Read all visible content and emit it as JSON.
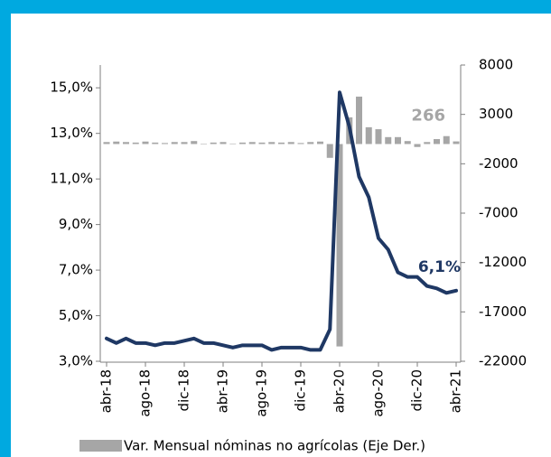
{
  "chart_data": {
    "type": "bar_line",
    "categories": [
      "abr-18",
      null,
      null,
      null,
      "ago-18",
      null,
      null,
      null,
      "dic-18",
      null,
      null,
      null,
      "abr-19",
      null,
      null,
      null,
      "ago-19",
      null,
      null,
      null,
      "dic-19",
      null,
      null,
      null,
      "abr-20",
      null,
      null,
      null,
      "ago-20",
      null,
      null,
      null,
      "dic-20",
      null,
      null,
      null,
      "abr-21"
    ],
    "series": [
      {
        "name": "Var. Mensual nóminas no agrícolas (Eje Der.)",
        "type": "bar",
        "axis": "y2",
        "color": "#a6a6a6",
        "values": [
          200,
          250,
          200,
          150,
          250,
          150,
          100,
          200,
          200,
          300,
          0,
          150,
          200,
          50,
          150,
          200,
          150,
          200,
          150,
          200,
          100,
          200,
          250,
          -1400,
          -20500,
          2700,
          4800,
          1700,
          1500,
          700,
          700,
          300,
          -300,
          200,
          500,
          800,
          266
        ],
        "value_labels": [
          null,
          null,
          null,
          null,
          null,
          null,
          null,
          null,
          null,
          null,
          null,
          null,
          null,
          null,
          null,
          null,
          null,
          null,
          null,
          null,
          null,
          null,
          null,
          null,
          null,
          null,
          null,
          null,
          null,
          null,
          null,
          null,
          null,
          null,
          null,
          null,
          "266"
        ]
      },
      {
        "type": "line",
        "axis": "y",
        "color": "#1f3864",
        "values": [
          4.0,
          3.8,
          4.0,
          3.8,
          3.8,
          3.7,
          3.8,
          3.8,
          3.9,
          4.0,
          3.8,
          3.8,
          3.7,
          3.6,
          3.7,
          3.7,
          3.7,
          3.5,
          3.6,
          3.6,
          3.6,
          3.5,
          3.5,
          4.4,
          14.8,
          13.3,
          11.1,
          10.2,
          8.4,
          7.9,
          6.9,
          6.7,
          6.7,
          6.3,
          6.2,
          6.0,
          6.1
        ],
        "value_labels": [
          null,
          null,
          null,
          null,
          null,
          null,
          null,
          null,
          null,
          null,
          null,
          null,
          null,
          null,
          null,
          null,
          null,
          null,
          null,
          null,
          null,
          null,
          null,
          null,
          null,
          null,
          null,
          null,
          null,
          null,
          null,
          null,
          null,
          null,
          null,
          null,
          "6,1%"
        ]
      }
    ],
    "ylim": [
      3,
      16
    ],
    "yticks": [
      {
        "value": 3,
        "label": "3,0%"
      },
      {
        "value": 5,
        "label": "5,0%"
      },
      {
        "value": 7,
        "label": "7,0%"
      },
      {
        "value": 9,
        "label": "9,0%"
      },
      {
        "value": 11,
        "label": "11,0%"
      },
      {
        "value": 13,
        "label": "13,0%"
      },
      {
        "value": 15,
        "label": "15,0%"
      }
    ],
    "y2lim": [
      -22000,
      8000
    ],
    "y2ticks": [
      -22000,
      -17000,
      -12000,
      -7000,
      -2000,
      3000,
      8000
    ],
    "legend": "bottom"
  }
}
